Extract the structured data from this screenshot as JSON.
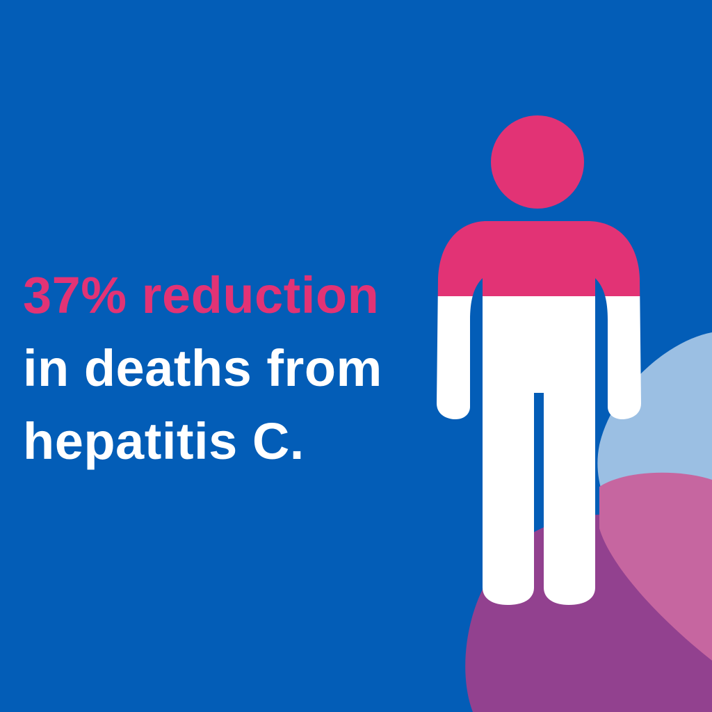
{
  "headline": {
    "line1": "37% reduction",
    "line2": "in deaths from",
    "line3": "hepatitis C."
  },
  "figure": {
    "icon": "person-icon",
    "highlighted_fraction_percent": 37
  },
  "colors": {
    "background": "#035DB7",
    "accent_pink": "#E23375",
    "text_white": "#FFFFFF",
    "blob_light_blue": "#9BBFE3",
    "blob_pink": "#C666A0",
    "blob_purple": "#92418F"
  }
}
